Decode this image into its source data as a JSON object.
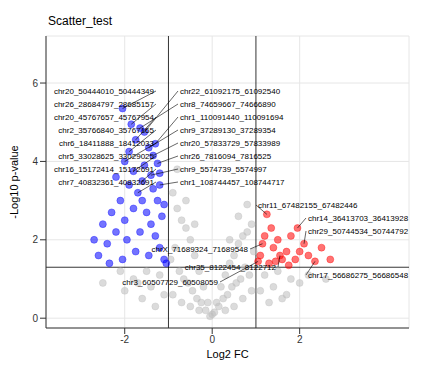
{
  "chart_data": {
    "type": "scatter",
    "title": "Scatter_test",
    "x_label": "Log2 FC",
    "y_label": "-Log10 p-value",
    "xlim": [
      -3.8,
      4.5
    ],
    "ylim": [
      -0.25,
      7.2
    ],
    "xticks": [
      -2,
      0,
      2
    ],
    "yticks": [
      0,
      2,
      4,
      6
    ],
    "grid": true,
    "reference_lines": {
      "x": [
        -1,
        1
      ],
      "y": [
        1.3
      ]
    },
    "series": [
      {
        "color": "#bebebe",
        "x": [
          -0.9,
          -0.8,
          -0.7,
          -0.6,
          -0.5,
          -0.4,
          -0.3,
          -0.2,
          -0.1,
          0,
          0.1,
          0.2,
          0.3,
          0.4,
          0.5,
          0.6,
          0.7,
          0.8,
          0.9,
          -0.95,
          -0.85,
          -0.75,
          -0.65,
          -0.55,
          -0.45,
          -0.35,
          -0.25,
          -0.15,
          -0.05,
          0.05,
          0.15,
          0.25,
          0.35,
          0.45,
          0.55,
          0.65,
          0.75,
          0.85,
          0.95,
          -0.9,
          -0.7,
          -0.5,
          -0.3,
          0.3,
          0.5,
          0.7,
          0.9,
          -0.8,
          -0.6,
          -0.4,
          0.4,
          0.6,
          0.8,
          -1.2,
          -1.5,
          -1.8,
          -2.1,
          -2.5,
          -1.1,
          -1.4,
          -1.7,
          -2.0,
          1.2,
          1.5,
          1.8,
          2.2,
          1.1,
          1.4,
          1.7,
          2.0,
          2.6,
          -1.3,
          -1.6,
          1.3,
          1.6
        ],
        "y": [
          3.2,
          2.8,
          2.5,
          2.3,
          2.0,
          1.6,
          1.2,
          0.8,
          0.4,
          0.1,
          0.4,
          0.8,
          1.1,
          1.4,
          1.6,
          1.9,
          2.1,
          2.2,
          2.4,
          1.5,
          1.8,
          1.2,
          1.0,
          0.9,
          0.7,
          0.5,
          0.4,
          0.2,
          0.05,
          0.15,
          0.3,
          0.5,
          0.6,
          0.8,
          0.9,
          1.0,
          1.3,
          1.1,
          1.7,
          0.6,
          0.4,
          0.3,
          0.2,
          0.2,
          0.3,
          0.5,
          0.7,
          3.8,
          3.0,
          2.4,
          2.0,
          2.6,
          2.9,
          1.1,
          1.2,
          1.0,
          1.2,
          0.9,
          0.6,
          0.8,
          0.9,
          0.7,
          1.1,
          1.2,
          1.0,
          1.1,
          0.7,
          0.8,
          0.6,
          0.9,
          1.0,
          0.3,
          0.5,
          0.4,
          0.5
        ]
      },
      {
        "color": "#0000ff",
        "x": [
          -2.05,
          -1.55,
          -1.85,
          -1.65,
          -1.3,
          -1.75,
          -1.45,
          -1.9,
          -1.35,
          -2.0,
          -1.25,
          -1.8,
          -1.4,
          -1.6,
          -1.2,
          -1.7,
          -1.1,
          -1.2,
          -1.3,
          -1.4,
          -1.5,
          -1.6,
          -1.8,
          -2.0,
          -2.2,
          -2.4,
          -2.6,
          -1.15,
          -1.25,
          -1.35,
          -1.9,
          -2.1,
          -2.3,
          -1.05,
          -1.45,
          -1.75,
          -2.05,
          -2.5,
          -1.65,
          -1.95,
          -2.2,
          -2.35,
          -1.55,
          -1.1,
          -1.2,
          -2.7
        ],
        "y": [
          5.35,
          4.75,
          4.95,
          4.85,
          4.45,
          4.55,
          4.35,
          4.25,
          4.15,
          4.0,
          3.95,
          3.75,
          3.65,
          3.5,
          3.4,
          3.2,
          1.5,
          1.8,
          2.1,
          2.4,
          2.7,
          3.0,
          2.8,
          2.5,
          2.2,
          1.9,
          1.6,
          2.6,
          3.0,
          3.3,
          3.4,
          3.0,
          2.7,
          1.4,
          1.6,
          1.7,
          1.5,
          2.4,
          2.2,
          2.0,
          3.6,
          1.4,
          3.9,
          2.9,
          3.7,
          2.0
        ]
      },
      {
        "color": "#ff0000",
        "x": [
          1.25,
          1.95,
          2.1,
          1.15,
          1.55,
          1.05,
          2.35,
          1.1,
          1.2,
          1.3,
          1.4,
          1.5,
          1.6,
          1.7,
          1.8,
          1.9,
          2.0,
          2.2,
          2.5,
          1.35,
          1.75,
          2.7,
          1.45
        ],
        "y": [
          2.65,
          2.3,
          1.9,
          1.9,
          1.6,
          1.45,
          1.45,
          1.6,
          2.1,
          1.4,
          1.8,
          2.0,
          1.5,
          1.7,
          2.1,
          1.5,
          1.7,
          1.6,
          1.8,
          2.3,
          1.35,
          1.5,
          1.45
        ]
      }
    ],
    "annotations": [
      {
        "text": "chr20_50444010_50444349",
        "x": -2.05,
        "y": 5.35
      },
      {
        "text": "chr26_28684797_28685157",
        "x": -1.85,
        "y": 4.95
      },
      {
        "text": "chr20_45767657_45767954",
        "x": -1.75,
        "y": 4.55
      },
      {
        "text": "chr2_35766840_35767165",
        "x": -1.9,
        "y": 4.25
      },
      {
        "text": "chr6_18411888_18412033",
        "x": -2.0,
        "y": 4.0
      },
      {
        "text": "chr5_33028625_33029025",
        "x": -1.8,
        "y": 3.75
      },
      {
        "text": "chr16_15172414_15172691",
        "x": -1.6,
        "y": 3.5
      },
      {
        "text": "chr7_40832361_40832691",
        "x": -1.7,
        "y": 3.2
      },
      {
        "text": "chr22_61092175_61092540",
        "x": -1.55,
        "y": 4.75
      },
      {
        "text": "chr8_74659667_74666890",
        "x": -1.65,
        "y": 4.85
      },
      {
        "text": "chr1_110091440_110091694",
        "x": -1.3,
        "y": 4.45
      },
      {
        "text": "chr9_37289130_37289354",
        "x": -1.45,
        "y": 4.35
      },
      {
        "text": "chr20_57833729_57833989",
        "x": -1.35,
        "y": 4.15
      },
      {
        "text": "chr26_7816094_7816525",
        "x": -1.25,
        "y": 3.95
      },
      {
        "text": "chr9_5574739_5574997",
        "x": -1.4,
        "y": 3.65
      },
      {
        "text": "chr1_108744457_108744717",
        "x": -1.2,
        "y": 3.4
      },
      {
        "text": "chr11_67482155_67482446",
        "x": 1.25,
        "y": 2.65
      },
      {
        "text": "chr14_36413703_36413928",
        "x": 1.95,
        "y": 2.3
      },
      {
        "text": "chr29_50744534_50744792",
        "x": 2.1,
        "y": 1.9
      },
      {
        "text": "chr17_56686275_56686548",
        "x": 2.35,
        "y": 1.45
      },
      {
        "text": "chrX_71689324_71689548",
        "x": 1.15,
        "y": 1.9
      },
      {
        "text": "chr35_8122454_8122712",
        "x": 1.55,
        "y": 1.6
      },
      {
        "text": "chr3_60507729_60508059",
        "x": 1.05,
        "y": 1.45
      }
    ]
  }
}
